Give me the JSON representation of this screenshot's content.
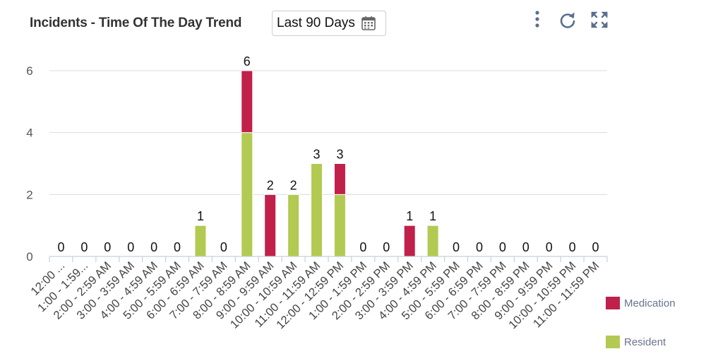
{
  "header": {
    "title": "Incidents - Time Of The Day Trend",
    "date_range": "Last 90 Days"
  },
  "toolbar": {
    "icons": [
      "more-vertical-icon",
      "refresh-icon",
      "fullscreen-icon"
    ]
  },
  "colors": {
    "medication": "#c0204a",
    "resident": "#b2ca52",
    "text": "#333333",
    "grid": "#dcdcdc",
    "toolbar_icon": "#5a6f8b"
  },
  "chart_data": {
    "type": "bar",
    "stacked": true,
    "categories": [
      "12:00 ...",
      "1:00 - 1:59...",
      "2:00 - 2:59 AM",
      "3:00 - 3:59 AM",
      "4:00 - 4:59 AM",
      "5:00 - 5:59 AM",
      "6:00 - 6:59 AM",
      "7:00 - 7:59 AM",
      "8:00 - 8:59 AM",
      "9:00 - 9:59 AM",
      "10:00 - 10:59 AM",
      "11:00 - 11:59 AM",
      "12:00 - 12:59 PM",
      "1:00 - 1:59 PM",
      "2:00 - 2:59 PM",
      "3:00 - 3:59 PM",
      "4:00 - 4:59 PM",
      "5:00 - 5:59 PM",
      "6:00 - 6:59 PM",
      "7:00 - 7:59 PM",
      "8:00 - 8:59 PM",
      "9:00 - 9:59 PM",
      "10:00 - 10:59 PM",
      "11:00 - 11:59 PM"
    ],
    "series": [
      {
        "name": "Medication",
        "color": "#c0204a",
        "values": [
          0,
          0,
          0,
          0,
          0,
          0,
          0,
          0,
          2,
          2,
          0,
          0,
          1,
          0,
          0,
          1,
          0,
          0,
          0,
          0,
          0,
          0,
          0,
          0
        ]
      },
      {
        "name": "Resident",
        "color": "#b2ca52",
        "values": [
          0,
          0,
          0,
          0,
          0,
          0,
          1,
          0,
          4,
          0,
          2,
          3,
          2,
          0,
          0,
          0,
          1,
          0,
          0,
          0,
          0,
          0,
          0,
          0
        ]
      }
    ],
    "totals": [
      0,
      0,
      0,
      0,
      0,
      0,
      1,
      0,
      6,
      2,
      2,
      3,
      3,
      0,
      0,
      1,
      1,
      0,
      0,
      0,
      0,
      0,
      0,
      0
    ],
    "yticks": [
      0,
      2,
      4,
      6
    ],
    "ylim": [
      0,
      6
    ],
    "grid": true,
    "legend_position": "bottom-right",
    "title": "",
    "xlabel": "",
    "ylabel": ""
  }
}
